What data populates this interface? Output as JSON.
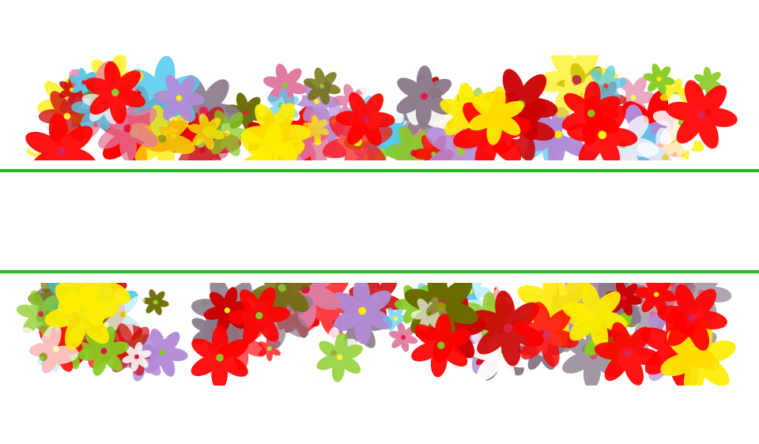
{
  "image": {
    "subject": "floral-border-banner",
    "background_color": "#ffffff",
    "band_color": "#22bb22",
    "flower_palette": [
      "#ff0000",
      "#cc0000",
      "#ffee00",
      "#88cc22",
      "#b28bd6",
      "#8a7a8a",
      "#55ccee",
      "#ffffff",
      "#e07aa0",
      "#6b6b00"
    ],
    "center_colors": [
      "#ffee00",
      "#dd1144",
      "#88cc22"
    ],
    "banner_text": ""
  }
}
